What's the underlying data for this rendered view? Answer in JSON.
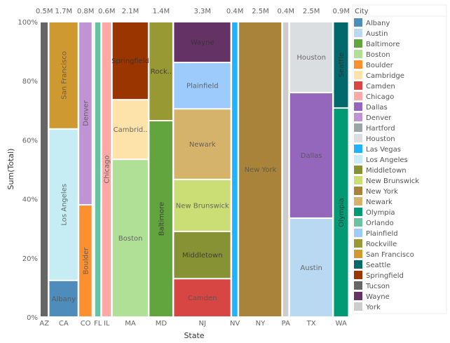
{
  "chart_data": {
    "type": "mosaic",
    "xlabel": "State",
    "ylabel": "Sum(Total)",
    "ylim": [
      0,
      100
    ],
    "yticks": [
      "0%",
      "20%",
      "40%",
      "60%",
      "80%",
      "100%"
    ],
    "legend": {
      "title": "City",
      "placement": "right",
      "items": [
        {
          "name": "Albany",
          "color": "#4e8cbb"
        },
        {
          "name": "Austin",
          "color": "#b9d9f2"
        },
        {
          "name": "Baltimore",
          "color": "#62a43d"
        },
        {
          "name": "Boston",
          "color": "#b0e096"
        },
        {
          "name": "Boulder",
          "color": "#fc8f2e"
        },
        {
          "name": "Cambridge",
          "color": "#fde2a9"
        },
        {
          "name": "Camden",
          "color": "#d84643"
        },
        {
          "name": "Chicago",
          "color": "#fea9a5"
        },
        {
          "name": "Dallas",
          "color": "#9467bd"
        },
        {
          "name": "Denver",
          "color": "#c093d4"
        },
        {
          "name": "Hartford",
          "color": "#98a6a5"
        },
        {
          "name": "Houston",
          "color": "#dbdee1"
        },
        {
          "name": "Las Vegas",
          "color": "#1fb3ff"
        },
        {
          "name": "Los Angeles",
          "color": "#c6ecf4"
        },
        {
          "name": "Middletown",
          "color": "#869233"
        },
        {
          "name": "New Brunswick",
          "color": "#cbdd75"
        },
        {
          "name": "New York",
          "color": "#a98339"
        },
        {
          "name": "Newark",
          "color": "#d5b36b"
        },
        {
          "name": "Olympia",
          "color": "#019a75"
        },
        {
          "name": "Orlando",
          "color": "#68c3a3"
        },
        {
          "name": "Plainfield",
          "color": "#9ccbfc"
        },
        {
          "name": "Rockville",
          "color": "#999934"
        },
        {
          "name": "San Francisco",
          "color": "#cf9932"
        },
        {
          "name": "Seattle",
          "color": "#01686b"
        },
        {
          "name": "Springfield",
          "color": "#9a3500"
        },
        {
          "name": "Tucson",
          "color": "#666666"
        },
        {
          "name": "Wayne",
          "color": "#643265"
        },
        {
          "name": "York",
          "color": "#cccccc"
        }
      ]
    },
    "columns": [
      {
        "state": "AZ",
        "total": 0.5,
        "total_label": "0.5M",
        "segments": [
          {
            "city": "Tucson",
            "share": 100
          }
        ]
      },
      {
        "state": "CA",
        "total": 1.7,
        "total_label": "1.7M",
        "segments": [
          {
            "city": "Albany",
            "share": 12.4,
            "label": "Albany"
          },
          {
            "city": "Los Angeles",
            "share": 51.3,
            "label": "Los Angeles"
          },
          {
            "city": "San Francisco",
            "share": 36.3,
            "label": "San Francisco"
          }
        ]
      },
      {
        "state": "CO",
        "total": 0.8,
        "total_label": "0.8M",
        "segments": [
          {
            "city": "Boulder",
            "share": 38,
            "label": "Boulder"
          },
          {
            "city": "Denver",
            "share": 62,
            "label": "Denver"
          }
        ]
      },
      {
        "state": "",
        "total": 0.1,
        "segments": [
          {
            "city": "Hartford",
            "share": 100
          }
        ]
      },
      {
        "state": "FL",
        "total": 0.4,
        "segments": [
          {
            "city": "Orlando",
            "share": 100
          }
        ]
      },
      {
        "state": "IL",
        "total": 0.6,
        "total_label": "0.6M",
        "segments": [
          {
            "city": "Chicago",
            "share": 100,
            "label": "Chicago"
          }
        ]
      },
      {
        "state": "MA",
        "total": 2.1,
        "total_label": "2.1M",
        "segments": [
          {
            "city": "Boston",
            "share": 53.4,
            "label": "Boston"
          },
          {
            "city": "Cambridge",
            "share": 20.2,
            "label": "Cambrid.."
          },
          {
            "city": "Springfield",
            "share": 26.4,
            "label": "Springfield"
          }
        ]
      },
      {
        "state": "MD",
        "total": 1.4,
        "total_label": "1.4M",
        "segments": [
          {
            "city": "Baltimore",
            "share": 66.5,
            "label": "Baltimore"
          },
          {
            "city": "Rockville",
            "share": 33.5,
            "label": "Rock.."
          }
        ]
      },
      {
        "state": "NJ",
        "total": 3.3,
        "total_label": "3.3M",
        "segments": [
          {
            "city": "Camden",
            "share": 13,
            "label": "Camden"
          },
          {
            "city": "Middletown",
            "share": 16,
            "label": "Middletown"
          },
          {
            "city": "New Brunswick",
            "share": 17.6,
            "label": "New Brunswick"
          },
          {
            "city": "Newark",
            "share": 23.9,
            "label": "Newark"
          },
          {
            "city": "Plainfield",
            "share": 15.7,
            "label": "Plainfield"
          },
          {
            "city": "Wayne",
            "share": 13.8,
            "label": "Wayne"
          }
        ]
      },
      {
        "state": "NV",
        "total": 0.4,
        "total_label": "0.4M",
        "segments": [
          {
            "city": "Las Vegas",
            "share": 100
          }
        ]
      },
      {
        "state": "NY",
        "total": 2.5,
        "total_label": "2.5M",
        "segments": [
          {
            "city": "New York",
            "share": 100,
            "label": "New York"
          }
        ]
      },
      {
        "state": "PA",
        "total": 0.4,
        "total_label": "0.4M",
        "segments": [
          {
            "city": "York",
            "share": 100
          }
        ]
      },
      {
        "state": "TX",
        "total": 2.5,
        "total_label": "2.5M",
        "segments": [
          {
            "city": "Austin",
            "share": 33.5,
            "label": "Austin"
          },
          {
            "city": "Dallas",
            "share": 42.5,
            "label": "Dallas"
          },
          {
            "city": "Houston",
            "share": 24,
            "label": "Houston"
          }
        ]
      },
      {
        "state": "WA",
        "total": 0.9,
        "total_label": "0.9M",
        "segments": [
          {
            "city": "Olympia",
            "share": 70.8,
            "label": "Olympia"
          },
          {
            "city": "Seattle",
            "share": 29.2,
            "label": "Seattle"
          }
        ]
      }
    ]
  }
}
